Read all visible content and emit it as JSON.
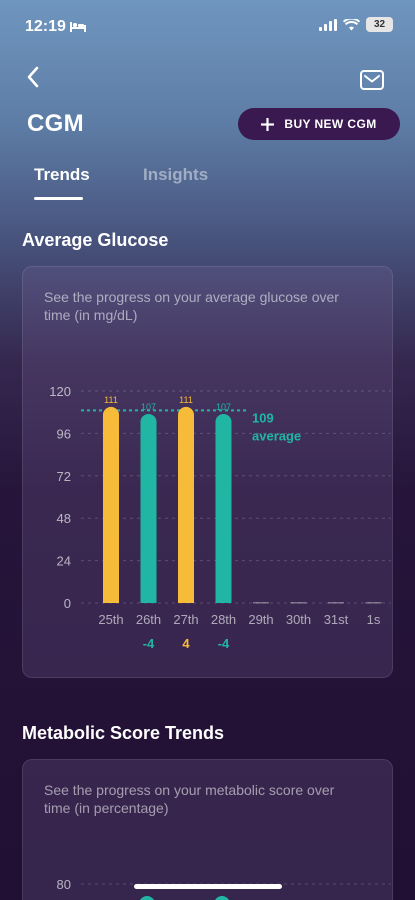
{
  "status_bar": {
    "time": "12:19",
    "battery": "32"
  },
  "header": {
    "title": "CGM",
    "buy_button_label": "BUY NEW CGM"
  },
  "tabs": [
    {
      "label": "Trends",
      "active": true
    },
    {
      "label": "Insights",
      "active": false
    }
  ],
  "average_glucose": {
    "title": "Average Glucose",
    "description": "See the progress on your average glucose over time (in mg/dL)",
    "average_value": "109",
    "average_label": "average"
  },
  "metabolic": {
    "title": "Metabolic Score Trends",
    "description": "See the progress on your metabolic score over time (in percentage)"
  },
  "colors": {
    "yellow": "#f7bb3a",
    "teal": "#21b6a3",
    "change_neg": "#21b6a3",
    "change_pos": "#f7bb3a"
  },
  "chart_data": [
    {
      "type": "bar",
      "title": "Average Glucose",
      "categories": [
        "25th",
        "26th",
        "27th",
        "28th",
        "29th",
        "30th",
        "31st",
        "1s"
      ],
      "values": [
        111,
        107,
        111,
        107,
        0,
        0,
        0,
        0
      ],
      "value_labels": [
        "111",
        "107",
        "111",
        "107",
        "",
        "",
        "",
        ""
      ],
      "bar_colors": [
        "yellow",
        "teal",
        "yellow",
        "teal",
        "none",
        "none",
        "none",
        "none"
      ],
      "changes": [
        "",
        "-4",
        "4",
        "-4",
        "",
        "",
        "",
        ""
      ],
      "change_colors": [
        "",
        "teal",
        "yellow",
        "teal",
        "",
        "",
        "",
        ""
      ],
      "yticks": [
        120,
        96,
        72,
        48,
        24,
        0
      ],
      "ylim": [
        0,
        120
      ],
      "average": 109,
      "grid": true
    },
    {
      "type": "bar",
      "title": "Metabolic Score Trends",
      "yticks": [
        80
      ],
      "ylim": [
        0,
        80
      ]
    }
  ]
}
